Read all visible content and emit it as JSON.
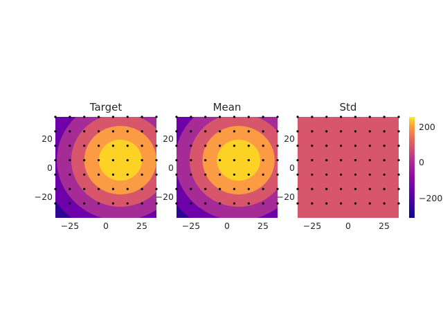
{
  "chart_data": [
    {
      "type": "contour",
      "title": "Target",
      "xlim": [
        -35,
        35
      ],
      "ylim": [
        -35,
        35
      ],
      "x_ticks": [
        -25,
        0,
        25
      ],
      "x_tick_labels": [
        "−25",
        "0",
        "25"
      ],
      "y_ticks": [
        -20,
        0,
        20
      ],
      "y_tick_labels": [
        "−20",
        "0",
        "20"
      ],
      "peak": {
        "x": 10,
        "y": 5,
        "value": 250
      },
      "levels": [
        -300,
        -200,
        -100,
        0,
        100,
        200
      ],
      "contours_radius": [
        54,
        44,
        34,
        25,
        15
      ],
      "points_x": [
        -35,
        -25,
        -15,
        -5,
        5,
        15,
        25,
        35
      ],
      "points_y": [
        -25,
        -15,
        -5,
        5,
        15,
        25,
        35
      ],
      "grid": false
    },
    {
      "type": "contour",
      "title": "Mean",
      "xlim": [
        -35,
        35
      ],
      "ylim": [
        -35,
        35
      ],
      "x_ticks": [
        -25,
        0,
        25
      ],
      "x_tick_labels": [
        "−25",
        "0",
        "25"
      ],
      "y_ticks": [
        -20,
        0,
        20
      ],
      "y_tick_labels": [
        "−20",
        "0",
        "20"
      ],
      "peak": {
        "x": 8,
        "y": 5,
        "value": 250
      },
      "levels": [
        -300,
        -200,
        -100,
        0,
        100,
        200
      ],
      "contours_radius": [
        54,
        44,
        34,
        25,
        15
      ],
      "points_x": [
        -35,
        -25,
        -15,
        -5,
        5,
        15,
        25,
        35
      ],
      "points_y": [
        -25,
        -15,
        -5,
        5,
        15,
        25,
        35
      ],
      "grid": false
    },
    {
      "type": "contour",
      "title": "Std",
      "xlim": [
        -35,
        35
      ],
      "ylim": [
        -35,
        35
      ],
      "x_ticks": [
        -25,
        0,
        25
      ],
      "x_tick_labels": [
        "−25",
        "0",
        "25"
      ],
      "y_ticks": [
        -20,
        0,
        20
      ],
      "y_tick_labels": [
        "−20",
        "0",
        "20"
      ],
      "uniform_value": 0,
      "points_x": [
        -35,
        -25,
        -15,
        -5,
        5,
        15,
        25,
        35
      ],
      "points_y": [
        -25,
        -15,
        -5,
        5,
        15,
        25,
        35
      ],
      "grid": false
    }
  ],
  "colorbar": {
    "cmap": "plasma",
    "range": [
      -310,
      260
    ],
    "ticks": [
      200,
      0,
      -200
    ],
    "tick_labels": [
      "200",
      "0",
      "−200"
    ],
    "level_colors": [
      "#2d0594",
      "#6d00a8",
      "#a52c96",
      "#d7566c",
      "#fb9b43",
      "#fcd225"
    ]
  }
}
